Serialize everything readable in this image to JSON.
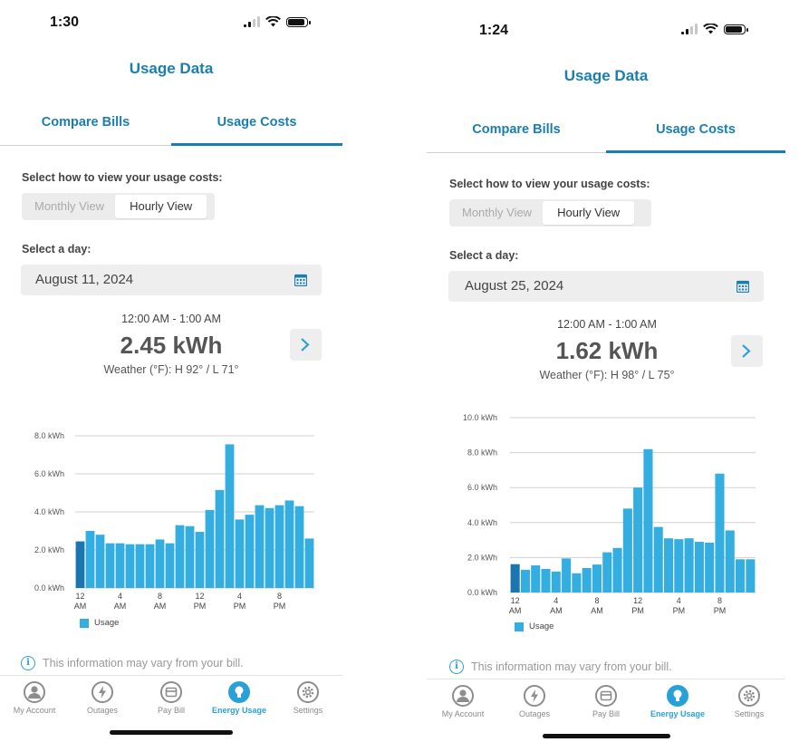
{
  "app": {
    "accent_color": "#1a7fb0",
    "bar_color": "#34aee0",
    "bar_highlight_color": "#1a75b0"
  },
  "screens": [
    {
      "status_time": "1:30",
      "title": "Usage Data",
      "tabs": [
        {
          "label": "Compare Bills",
          "active": false
        },
        {
          "label": "Usage Costs",
          "active": true
        }
      ],
      "view_prompt": "Select how to view your usage costs:",
      "view_options": [
        {
          "label": "Monthly View",
          "active": false
        },
        {
          "label": "Hourly View",
          "active": true
        }
      ],
      "day_prompt": "Select a day:",
      "selected_date": "August 11, 2024",
      "calendar_icon": "calendar-icon",
      "hour_range": "12:00 AM - 1:00 AM",
      "usage_value": "2.45 kWh",
      "weather": "Weather (°F): H 92° / L 71°",
      "next_icon": "chevron-right-icon",
      "legend_label": "Usage",
      "info_text": "This information may vary from your bill.",
      "tabbar": [
        {
          "label": "My Account",
          "icon": "person-icon",
          "active": false
        },
        {
          "label": "Outages",
          "icon": "lightning-icon",
          "active": false
        },
        {
          "label": "Pay Bill",
          "icon": "bill-icon",
          "active": false
        },
        {
          "label": "Energy Usage",
          "icon": "lightbulb-icon",
          "active": true
        },
        {
          "label": "Settings",
          "icon": "gear-icon",
          "active": false
        }
      ],
      "chart_data": {
        "type": "bar",
        "ylabel": "",
        "xlabel": "",
        "y_ticks": [
          "0.0 kWh",
          "2.0 kWh",
          "4.0 kWh",
          "6.0 kWh",
          "8.0 kWh"
        ],
        "ylim": [
          0,
          8
        ],
        "x_tick_labels": [
          {
            "index": 0,
            "lines": [
              "12",
              "AM"
            ]
          },
          {
            "index": 4,
            "lines": [
              "4",
              "AM"
            ]
          },
          {
            "index": 8,
            "lines": [
              "8",
              "AM"
            ]
          },
          {
            "index": 12,
            "lines": [
              "12",
              "PM"
            ]
          },
          {
            "index": 16,
            "lines": [
              "4",
              "PM"
            ]
          },
          {
            "index": 20,
            "lines": [
              "8",
              "PM"
            ]
          }
        ],
        "highlighted_index": 0,
        "series": [
          {
            "name": "Usage",
            "values": [
              2.45,
              3.0,
              2.8,
              2.35,
              2.35,
              2.3,
              2.3,
              2.3,
              2.55,
              2.35,
              3.3,
              3.25,
              2.95,
              4.1,
              5.15,
              7.55,
              3.6,
              3.85,
              4.35,
              4.2,
              4.35,
              4.6,
              4.3,
              2.6
            ]
          }
        ],
        "grid": true
      }
    },
    {
      "status_time": "1:24",
      "title": "Usage Data",
      "tabs": [
        {
          "label": "Compare Bills",
          "active": false
        },
        {
          "label": "Usage Costs",
          "active": true
        }
      ],
      "view_prompt": "Select how to view your usage costs:",
      "view_options": [
        {
          "label": "Monthly View",
          "active": false
        },
        {
          "label": "Hourly View",
          "active": true
        }
      ],
      "day_prompt": "Select a day:",
      "selected_date": "August 25, 2024",
      "calendar_icon": "calendar-icon",
      "hour_range": "12:00 AM - 1:00 AM",
      "usage_value": "1.62 kWh",
      "weather": "Weather (°F): H 98° / L 75°",
      "next_icon": "chevron-right-icon",
      "legend_label": "Usage",
      "info_text": "This information may vary from your bill.",
      "tabbar": [
        {
          "label": "My Account",
          "icon": "person-icon",
          "active": false
        },
        {
          "label": "Outages",
          "icon": "lightning-icon",
          "active": false
        },
        {
          "label": "Pay Bill",
          "icon": "bill-icon",
          "active": false
        },
        {
          "label": "Energy Usage",
          "icon": "lightbulb-icon",
          "active": true
        },
        {
          "label": "Settings",
          "icon": "gear-icon",
          "active": false
        }
      ],
      "chart_data": {
        "type": "bar",
        "ylabel": "",
        "xlabel": "",
        "y_ticks": [
          "0.0 kWh",
          "2.0 kWh",
          "4.0 kWh",
          "6.0 kWh",
          "8.0 kWh",
          "10.0 kWh"
        ],
        "ylim": [
          0,
          10
        ],
        "x_tick_labels": [
          {
            "index": 0,
            "lines": [
              "12",
              "AM"
            ]
          },
          {
            "index": 4,
            "lines": [
              "4",
              "AM"
            ]
          },
          {
            "index": 8,
            "lines": [
              "8",
              "AM"
            ]
          },
          {
            "index": 12,
            "lines": [
              "12",
              "PM"
            ]
          },
          {
            "index": 16,
            "lines": [
              "4",
              "PM"
            ]
          },
          {
            "index": 20,
            "lines": [
              "8",
              "PM"
            ]
          }
        ],
        "highlighted_index": 0,
        "series": [
          {
            "name": "Usage",
            "values": [
              1.62,
              1.3,
              1.55,
              1.35,
              1.2,
              1.95,
              1.1,
              1.4,
              1.6,
              2.3,
              2.55,
              4.8,
              6.0,
              8.2,
              3.75,
              3.1,
              3.05,
              3.1,
              2.9,
              2.85,
              6.8,
              3.55,
              1.9,
              1.9
            ]
          }
        ],
        "grid": true
      }
    }
  ]
}
